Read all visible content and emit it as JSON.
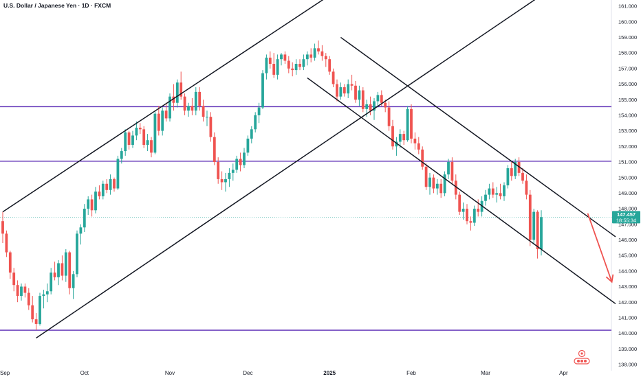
{
  "title": "U.S. Dollar / Japanese Yen · 1D · FXCM",
  "colors": {
    "up": "#26a69a",
    "down": "#ef5350",
    "channel": "#131722",
    "level": "#5b2bb5",
    "arrow": "#ef5350",
    "last": "#26a69a"
  },
  "chart_data": {
    "type": "candlestick",
    "title": "U.S. Dollar / Japanese Yen · 1D · FXCM",
    "ylim": [
      137.6,
      161.4
    ],
    "y_ticks": [
      138.0,
      139.0,
      140.0,
      141.0,
      142.0,
      143.0,
      144.0,
      145.0,
      146.0,
      147.0,
      148.0,
      149.0,
      150.0,
      151.0,
      152.0,
      153.0,
      154.0,
      155.0,
      156.0,
      157.0,
      158.0,
      159.0,
      160.0,
      161.0
    ],
    "y_tick_labels": [
      "138.000",
      "139.000",
      "140.000",
      "141.000",
      "142.000",
      "143.000",
      "144.000",
      "145.000",
      "146.000",
      "147.000",
      "148.000",
      "149.000",
      "150.000",
      "151.000",
      "152.000",
      "153.000",
      "154.000",
      "155.000",
      "156.000",
      "157.000",
      "158.000",
      "159.000",
      "160.000",
      "161.000"
    ],
    "x_ticks": [
      {
        "label": "Sep",
        "bar": 0,
        "bold": false
      },
      {
        "label": "Oct",
        "bar": 22,
        "bold": false
      },
      {
        "label": "Nov",
        "bar": 45,
        "bold": false
      },
      {
        "label": "Dec",
        "bar": 66,
        "bold": false
      },
      {
        "label": "2025",
        "bar": 88,
        "bold": true
      },
      {
        "label": "Feb",
        "bar": 110,
        "bold": false
      },
      {
        "label": "Mar",
        "bar": 130,
        "bold": false
      },
      {
        "label": "Apr",
        "bar": 151,
        "bold": false
      }
    ],
    "last_price": 147.457,
    "last_price_label": "147.457",
    "countdown": "18:55:34",
    "horizontal_levels": [
      154.55,
      151.05,
      140.2
    ],
    "channels": [
      {
        "name": "rising-upper",
        "from": {
          "bar": 0,
          "y": 147.8
        },
        "to": {
          "bar": 88,
          "y": 161.7
        }
      },
      {
        "name": "rising-lower",
        "from": {
          "bar": 9,
          "y": 139.7
        },
        "to": {
          "bar": 145,
          "y": 161.7
        }
      },
      {
        "name": "falling-upper",
        "from": {
          "bar": 91,
          "y": 159.0
        },
        "to": {
          "bar": 165,
          "y": 146.2
        }
      },
      {
        "name": "falling-lower",
        "from": {
          "bar": 82,
          "y": 156.4
        },
        "to": {
          "bar": 165,
          "y": 141.9
        }
      }
    ],
    "forecast_arrow": {
      "from": {
        "bar": 157.5,
        "y": 147.7
      },
      "to": {
        "bar": 164,
        "y": 143.3
      }
    },
    "ohlc": [
      [
        147.2,
        147.8,
        145.8,
        146.4
      ],
      [
        146.4,
        146.6,
        144.9,
        145.2
      ],
      [
        145.2,
        145.3,
        143.5,
        143.9
      ],
      [
        143.9,
        144.2,
        142.7,
        143.1
      ],
      [
        143.1,
        143.4,
        142.0,
        142.4
      ],
      [
        142.4,
        143.2,
        142.1,
        143.0
      ],
      [
        143.0,
        143.2,
        142.3,
        142.6
      ],
      [
        142.6,
        142.9,
        141.5,
        141.8
      ],
      [
        141.8,
        142.4,
        140.7,
        140.9
      ],
      [
        140.9,
        141.3,
        140.2,
        140.6
      ],
      [
        140.6,
        142.6,
        140.5,
        142.4
      ],
      [
        142.4,
        142.8,
        141.6,
        142.5
      ],
      [
        142.5,
        143.2,
        142.0,
        142.7
      ],
      [
        142.7,
        144.2,
        142.5,
        143.9
      ],
      [
        143.9,
        144.6,
        143.4,
        143.6
      ],
      [
        143.6,
        144.7,
        143.1,
        144.5
      ],
      [
        144.5,
        145.0,
        143.4,
        143.7
      ],
      [
        143.7,
        145.4,
        143.3,
        145.2
      ],
      [
        145.2,
        145.3,
        142.5,
        142.9
      ],
      [
        142.9,
        144.0,
        142.2,
        143.8
      ],
      [
        143.8,
        146.6,
        143.6,
        146.4
      ],
      [
        146.4,
        147.0,
        145.7,
        146.8
      ],
      [
        146.8,
        148.3,
        146.5,
        148.0
      ],
      [
        148.0,
        148.8,
        147.6,
        148.6
      ],
      [
        148.6,
        148.9,
        147.5,
        147.9
      ],
      [
        147.9,
        149.4,
        147.7,
        149.1
      ],
      [
        149.1,
        149.5,
        148.6,
        148.8
      ],
      [
        148.8,
        149.8,
        148.6,
        149.6
      ],
      [
        149.6,
        149.9,
        149.0,
        149.2
      ],
      [
        149.2,
        150.2,
        148.9,
        149.9
      ],
      [
        149.9,
        150.0,
        149.1,
        149.3
      ],
      [
        149.3,
        151.4,
        149.2,
        151.2
      ],
      [
        151.2,
        151.9,
        150.9,
        151.7
      ],
      [
        151.7,
        153.1,
        151.4,
        152.9
      ],
      [
        152.9,
        153.0,
        151.8,
        152.1
      ],
      [
        152.1,
        153.0,
        151.9,
        152.7
      ],
      [
        152.7,
        153.6,
        152.4,
        153.2
      ],
      [
        153.2,
        153.5,
        152.8,
        153.1
      ],
      [
        153.1,
        153.3,
        151.9,
        152.1
      ],
      [
        152.1,
        152.8,
        151.7,
        152.4
      ],
      [
        152.4,
        152.6,
        151.3,
        151.6
      ],
      [
        151.6,
        154.3,
        151.5,
        154.1
      ],
      [
        154.1,
        154.6,
        152.7,
        153.0
      ],
      [
        153.0,
        154.5,
        152.7,
        154.3
      ],
      [
        154.3,
        154.8,
        153.6,
        153.8
      ],
      [
        153.8,
        155.4,
        153.6,
        155.2
      ],
      [
        155.2,
        156.0,
        154.3,
        154.8
      ],
      [
        154.8,
        156.3,
        154.5,
        156.1
      ],
      [
        156.1,
        156.8,
        155.0,
        155.2
      ],
      [
        155.2,
        155.4,
        154.0,
        154.3
      ],
      [
        154.3,
        154.8,
        153.9,
        154.6
      ],
      [
        154.6,
        155.1,
        154.0,
        154.3
      ],
      [
        154.3,
        155.8,
        154.0,
        155.5
      ],
      [
        155.5,
        155.8,
        154.3,
        154.6
      ],
      [
        154.6,
        155.0,
        153.6,
        153.9
      ],
      [
        153.9,
        154.3,
        153.3,
        153.9
      ],
      [
        153.9,
        154.2,
        152.3,
        152.6
      ],
      [
        152.6,
        152.9,
        150.8,
        151.0
      ],
      [
        151.0,
        151.3,
        149.6,
        149.9
      ],
      [
        149.9,
        150.4,
        149.2,
        149.7
      ],
      [
        149.7,
        150.3,
        149.1,
        149.9
      ],
      [
        149.9,
        150.6,
        149.4,
        150.3
      ],
      [
        150.3,
        150.9,
        149.8,
        150.5
      ],
      [
        150.5,
        151.4,
        150.3,
        151.2
      ],
      [
        151.2,
        151.6,
        150.4,
        150.8
      ],
      [
        150.8,
        151.9,
        150.6,
        151.6
      ],
      [
        151.6,
        152.7,
        151.4,
        152.5
      ],
      [
        152.5,
        153.3,
        152.2,
        153.1
      ],
      [
        153.1,
        154.2,
        152.9,
        154.0
      ],
      [
        154.0,
        154.8,
        153.5,
        154.5
      ],
      [
        154.5,
        156.9,
        154.4,
        156.7
      ],
      [
        156.7,
        157.9,
        156.3,
        157.7
      ],
      [
        157.7,
        158.1,
        157.0,
        157.3
      ],
      [
        157.3,
        158.0,
        156.4,
        156.6
      ],
      [
        156.6,
        157.9,
        156.3,
        157.6
      ],
      [
        157.6,
        158.0,
        157.2,
        157.9
      ],
      [
        157.9,
        158.1,
        157.3,
        157.5
      ],
      [
        157.5,
        157.8,
        156.7,
        157.0
      ],
      [
        157.0,
        157.4,
        156.5,
        156.9
      ],
      [
        156.9,
        157.6,
        156.6,
        157.3
      ],
      [
        157.3,
        157.6,
        156.9,
        157.1
      ],
      [
        157.1,
        157.9,
        156.9,
        157.6
      ],
      [
        157.6,
        158.1,
        157.2,
        157.9
      ],
      [
        157.9,
        158.3,
        157.4,
        157.7
      ],
      [
        157.7,
        158.6,
        157.5,
        158.3
      ],
      [
        158.3,
        158.8,
        157.9,
        158.1
      ],
      [
        158.1,
        158.5,
        157.5,
        157.8
      ],
      [
        157.8,
        158.0,
        157.1,
        157.6
      ],
      [
        157.6,
        157.8,
        156.6,
        156.8
      ],
      [
        156.8,
        157.0,
        155.8,
        156.0
      ],
      [
        156.0,
        156.3,
        154.9,
        155.2
      ],
      [
        155.2,
        156.1,
        155.0,
        155.8
      ],
      [
        155.8,
        156.0,
        155.2,
        155.4
      ],
      [
        155.4,
        156.3,
        155.1,
        156.0
      ],
      [
        156.0,
        156.6,
        155.6,
        155.9
      ],
      [
        155.9,
        156.2,
        154.8,
        155.0
      ],
      [
        155.0,
        155.9,
        154.6,
        155.6
      ],
      [
        155.6,
        155.8,
        154.2,
        154.4
      ],
      [
        154.4,
        155.0,
        153.9,
        154.7
      ],
      [
        154.7,
        155.2,
        154.0,
        154.3
      ],
      [
        154.3,
        155.1,
        153.7,
        154.9
      ],
      [
        154.9,
        155.5,
        154.5,
        155.3
      ],
      [
        155.3,
        155.6,
        154.6,
        154.8
      ],
      [
        154.8,
        155.0,
        154.2,
        154.5
      ],
      [
        154.5,
        154.9,
        153.0,
        153.3
      ],
      [
        153.3,
        153.7,
        151.8,
        152.0
      ],
      [
        152.0,
        152.6,
        151.4,
        152.3
      ],
      [
        152.3,
        153.1,
        151.9,
        152.8
      ],
      [
        152.8,
        153.0,
        152.1,
        152.4
      ],
      [
        152.4,
        154.6,
        152.3,
        154.4
      ],
      [
        154.4,
        154.7,
        152.2,
        152.5
      ],
      [
        152.5,
        152.9,
        151.8,
        152.2
      ],
      [
        152.2,
        152.6,
        151.5,
        151.8
      ],
      [
        151.8,
        152.0,
        150.5,
        150.7
      ],
      [
        150.7,
        150.9,
        149.2,
        149.4
      ],
      [
        149.4,
        150.3,
        148.9,
        150.0
      ],
      [
        150.0,
        150.2,
        149.0,
        149.3
      ],
      [
        149.3,
        149.9,
        148.9,
        149.6
      ],
      [
        149.6,
        149.9,
        148.7,
        149.0
      ],
      [
        149.0,
        150.4,
        148.8,
        150.2
      ],
      [
        150.2,
        151.2,
        149.9,
        151.0
      ],
      [
        151.0,
        151.3,
        149.6,
        149.8
      ],
      [
        149.8,
        150.2,
        148.6,
        148.9
      ],
      [
        148.9,
        149.1,
        147.6,
        147.8
      ],
      [
        147.8,
        148.4,
        147.3,
        148.0
      ],
      [
        148.0,
        148.3,
        147.0,
        147.2
      ],
      [
        147.2,
        147.5,
        146.6,
        147.1
      ],
      [
        147.1,
        148.2,
        146.9,
        148.0
      ],
      [
        148.0,
        148.6,
        147.5,
        147.8
      ],
      [
        147.8,
        148.8,
        147.5,
        148.5
      ],
      [
        148.5,
        149.2,
        148.2,
        148.9
      ],
      [
        148.9,
        149.6,
        148.6,
        149.3
      ],
      [
        149.3,
        149.7,
        148.7,
        148.9
      ],
      [
        148.9,
        149.4,
        148.4,
        149.0
      ],
      [
        149.0,
        149.6,
        148.6,
        148.8
      ],
      [
        148.8,
        149.7,
        148.5,
        149.5
      ],
      [
        149.5,
        150.8,
        149.3,
        150.6
      ],
      [
        150.6,
        151.0,
        149.8,
        150.1
      ],
      [
        150.1,
        151.2,
        149.9,
        151.0
      ],
      [
        151.0,
        151.3,
        150.1,
        150.3
      ],
      [
        150.3,
        150.6,
        149.6,
        149.8
      ],
      [
        149.8,
        150.2,
        148.6,
        148.9
      ],
      [
        148.9,
        149.2,
        145.6,
        146.0
      ],
      [
        146.0,
        148.0,
        145.7,
        147.8
      ],
      [
        147.8,
        147.9,
        144.8,
        145.4
      ],
      [
        145.4,
        147.9,
        145.0,
        147.46
      ]
    ]
  }
}
